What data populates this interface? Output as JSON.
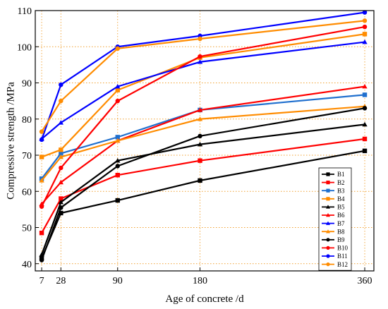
{
  "chart_data": {
    "type": "line",
    "title": "",
    "xlabel": "Age of concrete /d",
    "ylabel": "Compressive strength /MPa",
    "x": [
      7,
      28,
      90,
      180,
      360
    ],
    "x_tick_labels": [
      "7",
      "28",
      "90",
      "180",
      "360"
    ],
    "xlim": [
      0,
      370
    ],
    "ylim": [
      38,
      110
    ],
    "y_ticks": [
      40,
      50,
      60,
      70,
      80,
      90,
      100,
      110
    ],
    "grid": true,
    "grid_style": "dotted-orange",
    "legend_position": "lower-right",
    "series": [
      {
        "name": "B1",
        "color": "#000000",
        "marker": "square",
        "values": [
          41.5,
          54.0,
          57.5,
          63.0,
          71.2
        ]
      },
      {
        "name": "B2",
        "color": "#ff0000",
        "marker": "square",
        "values": [
          48.5,
          58.0,
          64.5,
          68.5,
          74.5
        ]
      },
      {
        "name": "B3",
        "color": "#1f6fce",
        "marker": "square",
        "values": [
          63.5,
          70.5,
          75.0,
          82.5,
          86.7
        ]
      },
      {
        "name": "B4",
        "color": "#ff8c00",
        "marker": "square",
        "values": [
          69.5,
          71.5,
          88.0,
          97.0,
          103.5
        ]
      },
      {
        "name": "B5",
        "color": "#000000",
        "marker": "triangle",
        "values": [
          42.5,
          57.0,
          68.5,
          73.0,
          78.5
        ]
      },
      {
        "name": "B6",
        "color": "#ff0000",
        "marker": "triangle",
        "values": [
          56.5,
          62.5,
          74.0,
          82.5,
          89.0
        ]
      },
      {
        "name": "B7",
        "color": "#0000ff",
        "marker": "triangle",
        "values": [
          74.5,
          79.0,
          89.0,
          95.8,
          101.3
        ]
      },
      {
        "name": "B8",
        "color": "#ff8c00",
        "marker": "triangle",
        "values": [
          63.0,
          69.5,
          74.0,
          80.0,
          83.5
        ]
      },
      {
        "name": "B9",
        "color": "#000000",
        "marker": "circle",
        "values": [
          41.0,
          55.5,
          67.0,
          75.3,
          83.0
        ]
      },
      {
        "name": "B10",
        "color": "#ff0000",
        "marker": "circle",
        "values": [
          55.8,
          66.5,
          85.0,
          97.3,
          105.5
        ]
      },
      {
        "name": "B11",
        "color": "#0000ff",
        "marker": "circle",
        "values": [
          74.3,
          89.5,
          100.0,
          103.0,
          109.5
        ]
      },
      {
        "name": "B12",
        "color": "#ff8c00",
        "marker": "circle",
        "values": [
          76.5,
          85.0,
          99.5,
          102.2,
          107.2
        ]
      }
    ]
  }
}
